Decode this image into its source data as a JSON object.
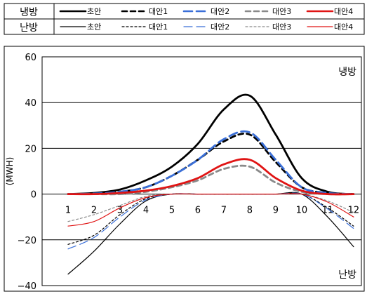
{
  "legend": {
    "rows": [
      {
        "label": "냉방",
        "items": [
          {
            "name": "초안",
            "color": "#000000",
            "dash": "solid",
            "weight": "thick"
          },
          {
            "name": "대안1",
            "color": "#000000",
            "dash": "dashed",
            "weight": "thick"
          },
          {
            "name": "대안2",
            "color": "#3a6fd8",
            "dash": "longdash",
            "weight": "thick"
          },
          {
            "name": "대안3",
            "color": "#8a8a8a",
            "dash": "dashed",
            "weight": "thick"
          },
          {
            "name": "대안4",
            "color": "#e01414",
            "dash": "solid",
            "weight": "thick"
          }
        ]
      },
      {
        "label": "난방",
        "items": [
          {
            "name": "초안",
            "color": "#000000",
            "dash": "solid",
            "weight": "thin"
          },
          {
            "name": "대안1",
            "color": "#000000",
            "dash": "dotted",
            "weight": "thin"
          },
          {
            "name": "대안2",
            "color": "#3a6fd8",
            "dash": "longdash",
            "weight": "thin"
          },
          {
            "name": "대안3",
            "color": "#8a8a8a",
            "dash": "dotted",
            "weight": "thin"
          },
          {
            "name": "대안4",
            "color": "#e01414",
            "dash": "solid",
            "weight": "thin"
          }
        ]
      }
    ]
  },
  "annotations": {
    "cooling": "냉방",
    "heating": "난방"
  },
  "chart_data": {
    "type": "line",
    "title": "",
    "xlabel": "",
    "ylabel": "(MWH)",
    "x": [
      1,
      2,
      3,
      4,
      5,
      6,
      7,
      8,
      9,
      10,
      11,
      12
    ],
    "x_tick_labels": [
      "1",
      "2",
      "3",
      "4",
      "5",
      "6",
      "7",
      "8",
      "9",
      "10",
      "11",
      "12"
    ],
    "y_tick_labels": [
      "60",
      "40",
      "20",
      "0",
      "−20",
      "−40"
    ],
    "y_ticks": [
      60,
      40,
      20,
      0,
      -20,
      -40
    ],
    "ylim": [
      -40,
      60
    ],
    "xlim": [
      0.0,
      12.3
    ],
    "grid": "horizontal",
    "series": [
      {
        "group": "냉방",
        "name": "초안",
        "values": [
          0,
          0.5,
          2,
          6,
          12,
          22,
          37,
          43,
          26,
          7,
          1,
          0
        ]
      },
      {
        "group": "냉방",
        "name": "대안1",
        "values": [
          0,
          0.2,
          1,
          3,
          8,
          15,
          23,
          26,
          14,
          3,
          0.5,
          0
        ]
      },
      {
        "group": "냉방",
        "name": "대안2",
        "values": [
          0,
          0.2,
          1,
          3,
          8,
          15,
          24,
          27,
          15,
          3,
          0.5,
          0
        ]
      },
      {
        "group": "냉방",
        "name": "대안3",
        "values": [
          0,
          0,
          0,
          1,
          3,
          6,
          11,
          12,
          5,
          1,
          0,
          0
        ]
      },
      {
        "group": "냉방",
        "name": "대안4",
        "values": [
          0,
          0,
          0.5,
          1.5,
          3.5,
          7,
          13,
          15,
          7,
          1.5,
          0,
          0
        ]
      },
      {
        "group": "난방",
        "name": "초안",
        "values": [
          -35,
          -25,
          -13,
          -3,
          0,
          0,
          0,
          0,
          0,
          0,
          -10,
          -23
        ]
      },
      {
        "group": "난방",
        "name": "대안1",
        "values": [
          -22,
          -18,
          -9,
          -2,
          0,
          0,
          0,
          0,
          0,
          0,
          -6,
          -14
        ]
      },
      {
        "group": "난방",
        "name": "대안2",
        "values": [
          -24,
          -19,
          -10,
          -2.5,
          0,
          0,
          0,
          0,
          0,
          0,
          -6.5,
          -15
        ]
      },
      {
        "group": "난방",
        "name": "대안3",
        "values": [
          -12,
          -9,
          -5,
          -1,
          0,
          0,
          0,
          0,
          0,
          0,
          -3,
          -8
        ]
      },
      {
        "group": "난방",
        "name": "대안4",
        "values": [
          -14,
          -12,
          -6,
          -1.5,
          0,
          0,
          0,
          0,
          0,
          0,
          -3.5,
          -10
        ]
      }
    ]
  }
}
